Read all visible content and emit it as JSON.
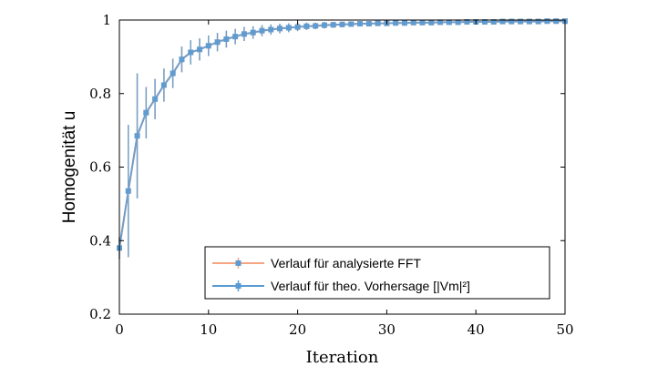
{
  "chart_data": {
    "type": "line",
    "xlabel": "Iteration",
    "ylabel": "Homogenität u",
    "xlim": [
      0,
      50
    ],
    "ylim": [
      0.2,
      1
    ],
    "xticks": [
      0,
      10,
      20,
      30,
      40,
      50
    ],
    "yticks": [
      0.2,
      0.4,
      0.6,
      0.8,
      1
    ],
    "ytick_labels": [
      "0.2",
      "0.4",
      "0.6",
      "0.8",
      "1"
    ],
    "grid": false,
    "legend_position": "bottom-right",
    "x": [
      0,
      1,
      2,
      3,
      4,
      5,
      6,
      7,
      8,
      9,
      10,
      11,
      12,
      13,
      14,
      15,
      16,
      17,
      18,
      19,
      20,
      21,
      22,
      23,
      24,
      25,
      26,
      27,
      28,
      29,
      30,
      31,
      32,
      33,
      34,
      35,
      36,
      37,
      38,
      39,
      40,
      41,
      42,
      43,
      44,
      45,
      46,
      47,
      48,
      49,
      50
    ],
    "series": [
      {
        "name": "Verlauf für analysierte FFT",
        "color": "#f4a582",
        "values": [
          0.38,
          0.535,
          0.685,
          0.748,
          0.785,
          0.823,
          0.855,
          0.893,
          0.912,
          0.92,
          0.93,
          0.94,
          0.948,
          0.955,
          0.962,
          0.966,
          0.971,
          0.974,
          0.977,
          0.979,
          0.981,
          0.983,
          0.984,
          0.986,
          0.987,
          0.988,
          0.989,
          0.99,
          0.99,
          0.991,
          0.991,
          0.992,
          0.992,
          0.993,
          0.993,
          0.993,
          0.994,
          0.994,
          0.994,
          0.995,
          0.995,
          0.995,
          0.995,
          0.996,
          0.996,
          0.996,
          0.996,
          0.996,
          0.997,
          0.997,
          0.997
        ],
        "errors": [
          0.03,
          0.18,
          0.17,
          0.07,
          0.055,
          0.045,
          0.04,
          0.035,
          0.033,
          0.03,
          0.028,
          0.025,
          0.023,
          0.021,
          0.019,
          0.017,
          0.015,
          0.014,
          0.013,
          0.012,
          0.011,
          0.01,
          0.009,
          0.009,
          0.008,
          0.008,
          0.007,
          0.007,
          0.007,
          0.006,
          0.006,
          0.006,
          0.006,
          0.005,
          0.005,
          0.005,
          0.005,
          0.005,
          0.005,
          0.005,
          0.004,
          0.004,
          0.004,
          0.004,
          0.004,
          0.004,
          0.004,
          0.004,
          0.004,
          0.004,
          0.004
        ]
      },
      {
        "name": "Verlauf für theo. Vorhersage [|Vm|²]",
        "color": "#5a9bd3",
        "values": [
          0.38,
          0.535,
          0.685,
          0.748,
          0.785,
          0.823,
          0.855,
          0.893,
          0.912,
          0.92,
          0.93,
          0.94,
          0.948,
          0.955,
          0.962,
          0.966,
          0.971,
          0.974,
          0.977,
          0.979,
          0.981,
          0.983,
          0.984,
          0.986,
          0.987,
          0.988,
          0.989,
          0.99,
          0.99,
          0.991,
          0.991,
          0.992,
          0.992,
          0.993,
          0.993,
          0.993,
          0.994,
          0.994,
          0.994,
          0.995,
          0.995,
          0.995,
          0.995,
          0.996,
          0.996,
          0.996,
          0.996,
          0.996,
          0.997,
          0.997,
          0.997
        ],
        "errors": [
          0.03,
          0.18,
          0.17,
          0.07,
          0.055,
          0.045,
          0.04,
          0.035,
          0.033,
          0.03,
          0.028,
          0.025,
          0.023,
          0.021,
          0.019,
          0.017,
          0.015,
          0.014,
          0.013,
          0.012,
          0.011,
          0.01,
          0.009,
          0.009,
          0.008,
          0.008,
          0.007,
          0.007,
          0.007,
          0.006,
          0.006,
          0.006,
          0.006,
          0.005,
          0.005,
          0.005,
          0.005,
          0.005,
          0.005,
          0.005,
          0.004,
          0.004,
          0.004,
          0.004,
          0.004,
          0.004,
          0.004,
          0.004,
          0.004,
          0.004,
          0.004
        ]
      }
    ]
  }
}
